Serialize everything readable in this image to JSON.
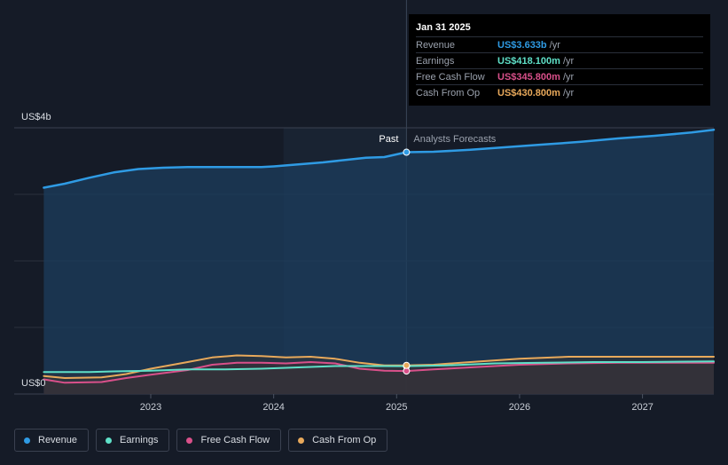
{
  "colors": {
    "revenue": "#2f9be4",
    "earnings": "#5fe0c8",
    "free_cash_flow": "#d9508a",
    "cash_from_op": "#e8a95b"
  },
  "tooltip": {
    "date": "Jan 31 2025",
    "rows": [
      {
        "label": "Revenue",
        "value": "US$3.633b",
        "unit": "/yr"
      },
      {
        "label": "Earnings",
        "value": "US$418.100m",
        "unit": "/yr"
      },
      {
        "label": "Free Cash Flow",
        "value": "US$345.800m",
        "unit": "/yr"
      },
      {
        "label": "Cash From Op",
        "value": "US$430.800m",
        "unit": "/yr"
      }
    ]
  },
  "chart_data": {
    "type": "line",
    "y_top_label": "US$4b",
    "y_bottom_label": "US$0",
    "past_label": "Past",
    "forecast_label": "Analysts Forecasts",
    "x_ticks": [
      {
        "label": "2023",
        "value": 2023.0
      },
      {
        "label": "2024",
        "value": 2024.0
      },
      {
        "label": "2025",
        "value": 2025.0
      },
      {
        "label": "2026",
        "value": 2026.0
      },
      {
        "label": "2027",
        "value": 2027.0
      }
    ],
    "xlim": [
      2022.12,
      2027.58
    ],
    "ylim": [
      0,
      4.0
    ],
    "past_end": 2025.08,
    "shade_start": 2024.08,
    "series": [
      {
        "name": "Revenue",
        "key": "revenue",
        "points": [
          [
            2022.13,
            3.1
          ],
          [
            2022.3,
            3.16
          ],
          [
            2022.5,
            3.25
          ],
          [
            2022.7,
            3.33
          ],
          [
            2022.9,
            3.38
          ],
          [
            2023.1,
            3.4
          ],
          [
            2023.3,
            3.41
          ],
          [
            2023.5,
            3.41
          ],
          [
            2023.7,
            3.41
          ],
          [
            2023.9,
            3.41
          ],
          [
            2024.0,
            3.42
          ],
          [
            2024.2,
            3.45
          ],
          [
            2024.4,
            3.48
          ],
          [
            2024.6,
            3.52
          ],
          [
            2024.75,
            3.55
          ],
          [
            2024.9,
            3.56
          ],
          [
            2025.08,
            3.633
          ],
          [
            2025.3,
            3.64
          ],
          [
            2025.6,
            3.67
          ],
          [
            2025.9,
            3.71
          ],
          [
            2026.2,
            3.75
          ],
          [
            2026.5,
            3.79
          ],
          [
            2026.8,
            3.84
          ],
          [
            2027.1,
            3.88
          ],
          [
            2027.4,
            3.93
          ],
          [
            2027.58,
            3.97
          ]
        ]
      },
      {
        "name": "Earnings",
        "key": "earnings",
        "points": [
          [
            2022.13,
            0.33
          ],
          [
            2022.5,
            0.33
          ],
          [
            2022.7,
            0.34
          ],
          [
            2023.0,
            0.35
          ],
          [
            2023.3,
            0.37
          ],
          [
            2023.6,
            0.37
          ],
          [
            2023.9,
            0.38
          ],
          [
            2024.2,
            0.4
          ],
          [
            2024.5,
            0.42
          ],
          [
            2024.8,
            0.42
          ],
          [
            2025.08,
            0.418
          ],
          [
            2025.4,
            0.43
          ],
          [
            2025.8,
            0.46
          ],
          [
            2026.2,
            0.47
          ],
          [
            2026.6,
            0.48
          ],
          [
            2027.0,
            0.48
          ],
          [
            2027.58,
            0.49
          ]
        ]
      },
      {
        "name": "Free Cash Flow",
        "key": "free_cash_flow",
        "points": [
          [
            2022.13,
            0.22
          ],
          [
            2022.3,
            0.17
          ],
          [
            2022.6,
            0.18
          ],
          [
            2022.8,
            0.24
          ],
          [
            2023.0,
            0.29
          ],
          [
            2023.3,
            0.36
          ],
          [
            2023.5,
            0.44
          ],
          [
            2023.7,
            0.47
          ],
          [
            2023.9,
            0.47
          ],
          [
            2024.1,
            0.46
          ],
          [
            2024.3,
            0.48
          ],
          [
            2024.5,
            0.46
          ],
          [
            2024.7,
            0.38
          ],
          [
            2024.9,
            0.35
          ],
          [
            2025.08,
            0.3458
          ],
          [
            2025.3,
            0.37
          ],
          [
            2025.6,
            0.4
          ],
          [
            2026.0,
            0.44
          ],
          [
            2026.4,
            0.46
          ],
          [
            2026.8,
            0.47
          ],
          [
            2027.2,
            0.47
          ],
          [
            2027.58,
            0.47
          ]
        ]
      },
      {
        "name": "Cash From Op",
        "key": "cash_from_op",
        "points": [
          [
            2022.13,
            0.27
          ],
          [
            2022.3,
            0.24
          ],
          [
            2022.6,
            0.25
          ],
          [
            2022.8,
            0.3
          ],
          [
            2023.0,
            0.38
          ],
          [
            2023.3,
            0.48
          ],
          [
            2023.5,
            0.55
          ],
          [
            2023.7,
            0.58
          ],
          [
            2023.9,
            0.57
          ],
          [
            2024.1,
            0.55
          ],
          [
            2024.3,
            0.56
          ],
          [
            2024.5,
            0.53
          ],
          [
            2024.7,
            0.47
          ],
          [
            2024.9,
            0.43
          ],
          [
            2025.08,
            0.4308
          ],
          [
            2025.3,
            0.44
          ],
          [
            2025.6,
            0.48
          ],
          [
            2026.0,
            0.53
          ],
          [
            2026.4,
            0.56
          ],
          [
            2026.8,
            0.56
          ],
          [
            2027.2,
            0.56
          ],
          [
            2027.58,
            0.56
          ]
        ]
      }
    ]
  },
  "legend": [
    {
      "label": "Revenue",
      "key": "revenue"
    },
    {
      "label": "Earnings",
      "key": "earnings"
    },
    {
      "label": "Free Cash Flow",
      "key": "free_cash_flow"
    },
    {
      "label": "Cash From Op",
      "key": "cash_from_op"
    }
  ]
}
